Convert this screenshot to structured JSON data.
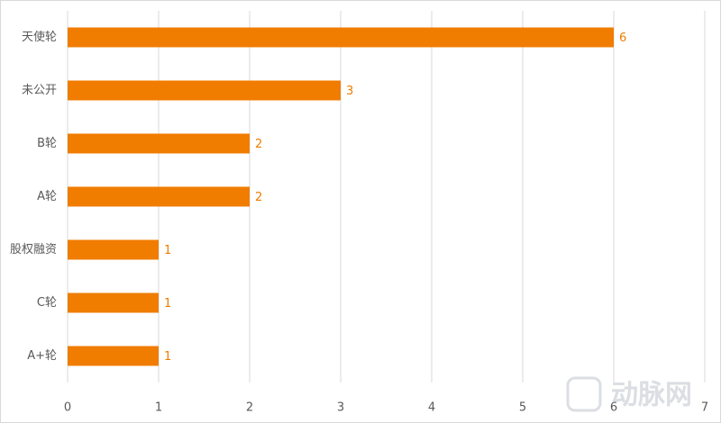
{
  "chart_data": {
    "type": "bar",
    "orientation": "horizontal",
    "categories": [
      "天使轮",
      "未公开",
      "B轮",
      "A轮",
      "股权融资",
      "C轮",
      "A+轮"
    ],
    "values": [
      6,
      3,
      2,
      2,
      1,
      1,
      1
    ],
    "color": "#f07c00",
    "xlim": [
      0,
      7
    ],
    "xticks": [
      0,
      1,
      2,
      3,
      4,
      5,
      6,
      7
    ],
    "grid": true,
    "watermark": "动脉网"
  }
}
